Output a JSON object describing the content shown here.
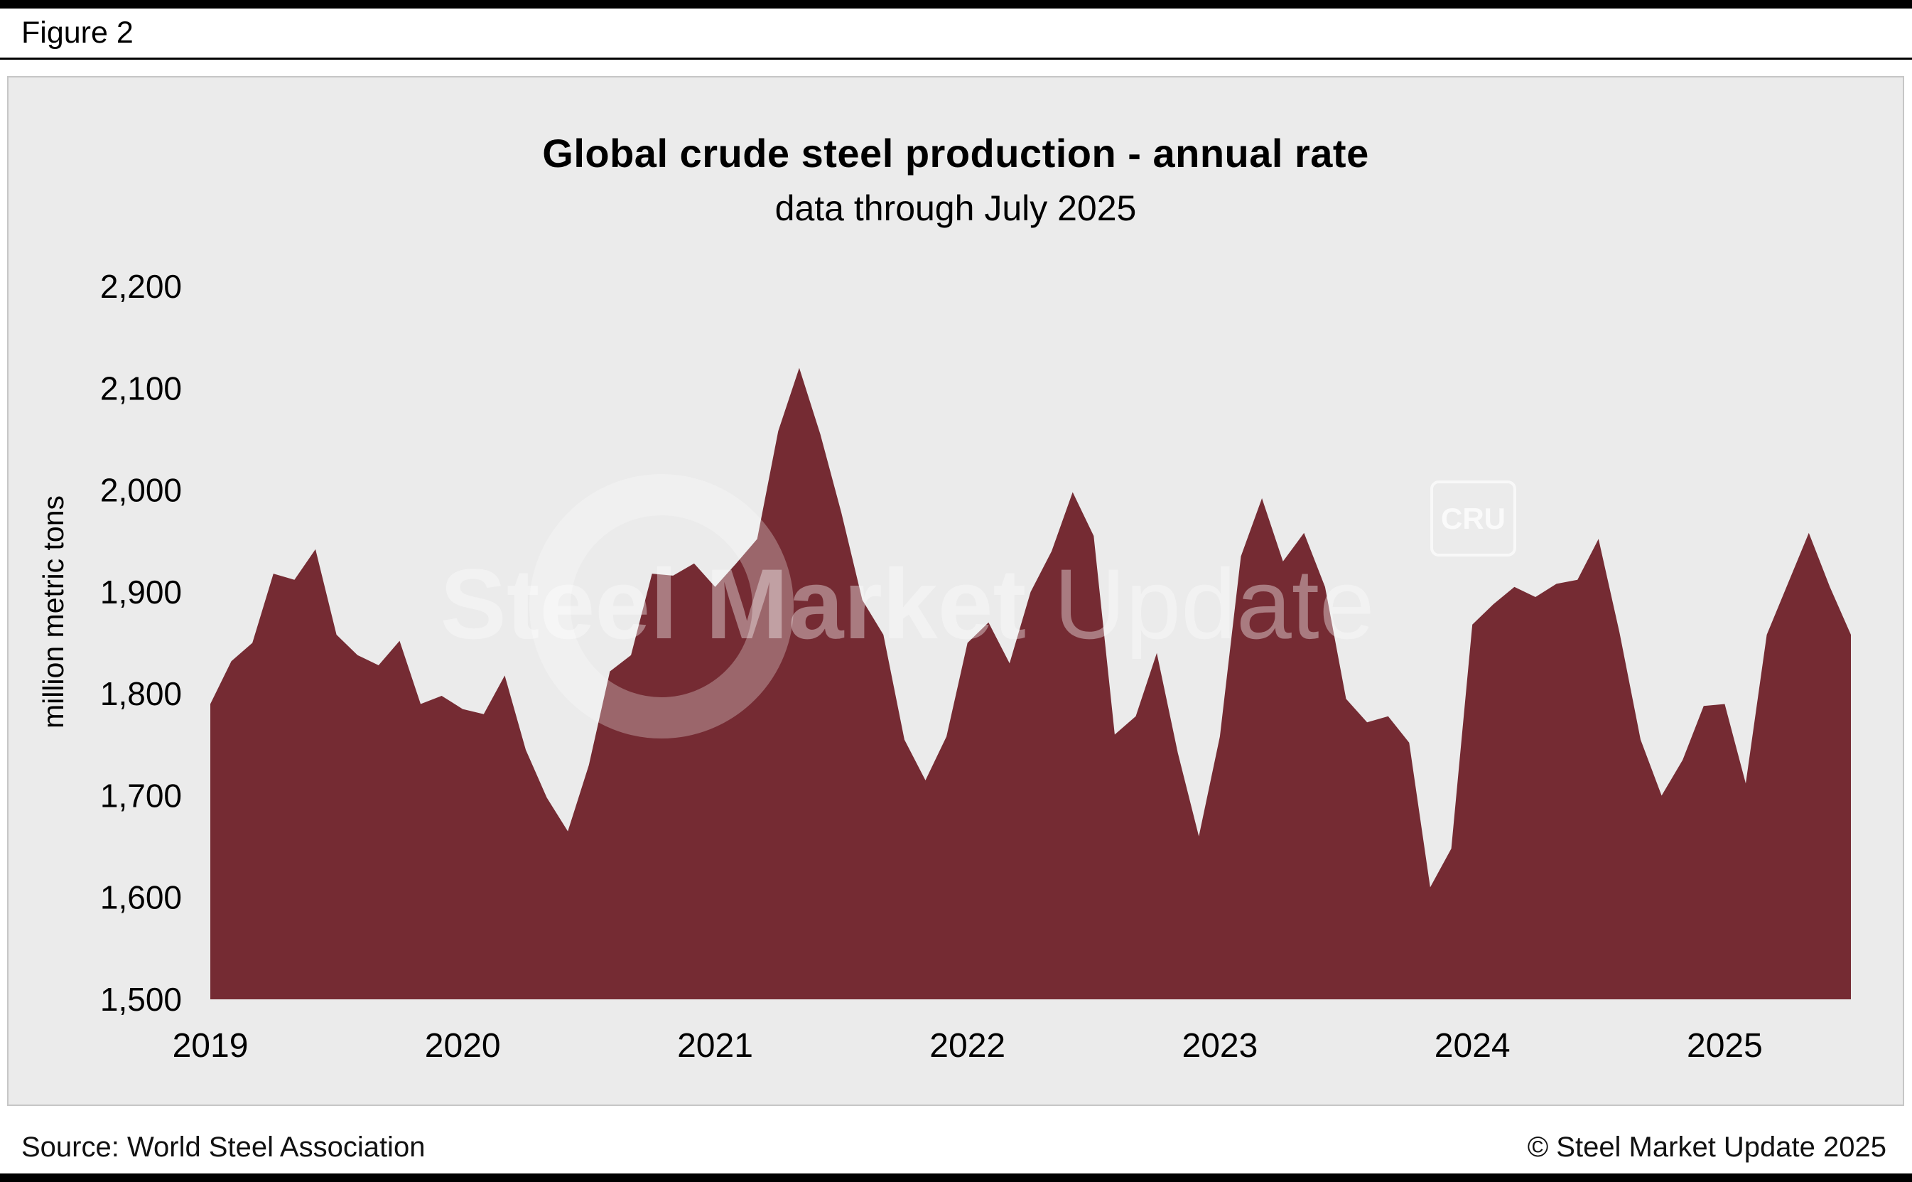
{
  "figure_label": "Figure 2",
  "chart_data": {
    "type": "area",
    "title": "Global crude steel production - annual rate",
    "subtitle": "data through July 2025",
    "ylabel": "million metric tons",
    "ylim": [
      1500,
      2200
    ],
    "ytick_step": 100,
    "ytick_labels": [
      "1,500",
      "1,600",
      "1,700",
      "1,800",
      "1,900",
      "2,000",
      "2,100",
      "2,200"
    ],
    "xtick_labels": [
      "2019",
      "2020",
      "2021",
      "2022",
      "2023",
      "2024",
      "2025"
    ],
    "xtick_month_index": [
      0,
      12,
      24,
      36,
      48,
      60,
      72
    ],
    "x_start": "2019-01",
    "x_end": "2025-07",
    "grid": "off",
    "legend": "none",
    "fill_color": "#752B33",
    "background": "#EBEBEB",
    "series_name": "Global crude steel production, annualized rate (million metric tons)",
    "values": [
      1790,
      1832,
      1850,
      1918,
      1912,
      1942,
      1858,
      1838,
      1828,
      1852,
      1790,
      1798,
      1785,
      1780,
      1818,
      1745,
      1698,
      1665,
      1730,
      1822,
      1838,
      1918,
      1916,
      1928,
      1905,
      1928,
      1952,
      2058,
      2120,
      2055,
      1978,
      1892,
      1858,
      1755,
      1715,
      1758,
      1850,
      1870,
      1830,
      1900,
      1940,
      1998,
      1955,
      1760,
      1778,
      1840,
      1742,
      1660,
      1758,
      1935,
      1992,
      1930,
      1958,
      1905,
      1795,
      1772,
      1778,
      1752,
      1610,
      1648,
      1868,
      1888,
      1905,
      1895,
      1908,
      1912,
      1952,
      1860,
      1755,
      1700,
      1735,
      1788,
      1790,
      1712,
      1858,
      1908,
      1958,
      1905,
      1858
    ]
  },
  "watermark": {
    "text_bold": "Steel Market",
    "text_light": " Update",
    "badge": "CRU"
  },
  "footer": {
    "source": "Source: World Steel Association",
    "copyright": "© Steel Market Update 2025"
  }
}
